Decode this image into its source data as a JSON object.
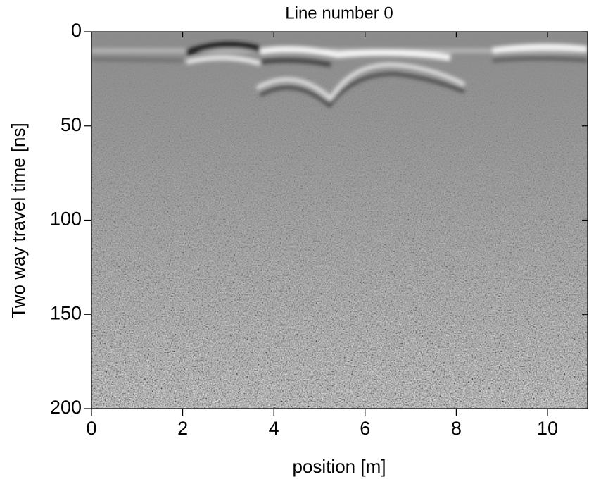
{
  "chart_data": {
    "type": "image",
    "title": "Line number 0",
    "xlabel": "position [m]",
    "ylabel": "Two way travel time [ns]",
    "xlim": [
      0,
      10.88
    ],
    "ylim": [
      0,
      200
    ],
    "yinverted": true,
    "xticks": [
      0,
      2,
      4,
      6,
      8,
      10
    ],
    "yticks": [
      0,
      50,
      100,
      150,
      200
    ],
    "grid": false
  }
}
